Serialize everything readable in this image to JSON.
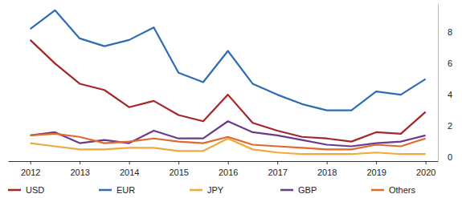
{
  "chart_data": {
    "type": "line",
    "x": [
      2012,
      2012.5,
      2013,
      2013.5,
      2014,
      2014.5,
      2015,
      2015.5,
      2016,
      2016.5,
      2017,
      2017.5,
      2018,
      2018.5,
      2019,
      2019.5,
      2020
    ],
    "xlim": [
      2011.55,
      2020.25
    ],
    "xticks": [
      2012,
      2013,
      2014,
      2015,
      2016,
      2017,
      2018,
      2019,
      2020
    ],
    "ylim": [
      -0.25,
      9.8
    ],
    "yticks": [
      0,
      2,
      4,
      6,
      8
    ],
    "grid": false,
    "legend": "bottom",
    "series": [
      {
        "name": "USD",
        "color": "#a3262a",
        "values": [
          7.5,
          6.0,
          4.7,
          4.3,
          3.2,
          3.6,
          2.7,
          2.3,
          4.0,
          2.2,
          1.7,
          1.3,
          1.2,
          1.0,
          1.6,
          1.5,
          2.9
        ]
      },
      {
        "name": "EUR",
        "color": "#2e6db4",
        "values": [
          8.2,
          9.4,
          7.6,
          7.1,
          7.5,
          8.3,
          5.4,
          4.8,
          6.8,
          4.7,
          4.0,
          3.4,
          3.0,
          3.0,
          4.2,
          4.0,
          5.0
        ]
      },
      {
        "name": "JPY",
        "color": "#f2a93b",
        "values": [
          0.9,
          0.7,
          0.5,
          0.5,
          0.6,
          0.6,
          0.4,
          0.4,
          1.2,
          0.5,
          0.3,
          0.2,
          0.2,
          0.2,
          0.3,
          0.2,
          0.2
        ]
      },
      {
        "name": "GBP",
        "color": "#6b3a8c",
        "values": [
          1.4,
          1.6,
          0.9,
          1.1,
          0.9,
          1.7,
          1.2,
          1.2,
          2.3,
          1.6,
          1.4,
          1.1,
          0.8,
          0.7,
          0.9,
          1.0,
          1.4
        ]
      },
      {
        "name": "Others",
        "color": "#e06a2c",
        "values": [
          1.4,
          1.5,
          1.3,
          0.9,
          1.0,
          1.2,
          1.0,
          0.9,
          1.3,
          0.8,
          0.7,
          0.6,
          0.5,
          0.5,
          0.8,
          0.7,
          1.2
        ]
      }
    ]
  }
}
